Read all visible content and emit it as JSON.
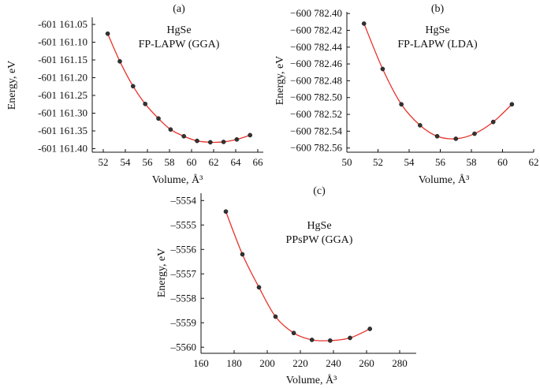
{
  "colors": {
    "curve": "#e8322a",
    "points": "#333333",
    "axis": "#111111"
  },
  "chart_data": [
    {
      "type": "line",
      "panel_label": "(a)",
      "annotation_lines": [
        "HgSe",
        "FP-LAPW (GGA)"
      ],
      "xlabel": "Volume, Å³",
      "ylabel": "Energy, eV",
      "xlim": [
        51,
        66.5
      ],
      "ylim": [
        -601161.41,
        -601161.03
      ],
      "xticks": [
        52,
        54,
        56,
        58,
        60,
        62,
        64,
        66
      ],
      "xtick_labels": [
        "52",
        "54",
        "56",
        "58",
        "60",
        "62",
        "64",
        "66"
      ],
      "yticks": [
        -601161.05,
        -601161.1,
        -601161.15,
        -601161.2,
        -601161.25,
        -601161.3,
        -601161.35,
        -601161.4
      ],
      "ytick_labels": [
        "-601 161.05",
        "-601 161.10",
        "-601 161.15",
        "-601 161.20",
        "-601 161.25",
        "-601 161.30",
        "-601 161.35",
        "-601 161.40"
      ],
      "series": [
        {
          "x": [
            52.4,
            53.5,
            54.7,
            55.8,
            57.0,
            58.1,
            59.3,
            60.5,
            61.7,
            62.9,
            64.1,
            65.3
          ],
          "values": [
            -601161.076,
            -601161.154,
            -601161.224,
            -601161.274,
            -601161.315,
            -601161.346,
            -601161.365,
            -601161.378,
            -601161.382,
            -601161.381,
            -601161.374,
            -601161.362
          ]
        }
      ]
    },
    {
      "type": "line",
      "panel_label": "(b)",
      "annotation_lines": [
        "HgSe",
        "FP-LAPW (LDA)"
      ],
      "xlabel": "Volume, Å³",
      "ylabel": "Energy, eV",
      "xlim": [
        50,
        62
      ],
      "ylim": [
        -600782.565,
        -600782.398
      ],
      "xticks": [
        50,
        52,
        54,
        56,
        58,
        60,
        62
      ],
      "xtick_labels": [
        "50",
        "52",
        "54",
        "56",
        "58",
        "60",
        "62"
      ],
      "yticks": [
        -600782.4,
        -600782.42,
        -600782.44,
        -600782.46,
        -600782.48,
        -600782.5,
        -600782.52,
        -600782.54,
        -600782.56
      ],
      "ytick_labels": [
        "−600 782.40",
        "−600 782.42",
        "−600 782.44",
        "−600 782.46",
        "−600 782.48",
        "−600 782.50",
        "−600 782.52",
        "−600 782.54",
        "−600 782.56"
      ],
      "series": [
        {
          "x": [
            51.1,
            52.3,
            53.5,
            54.7,
            55.8,
            57.0,
            58.2,
            59.4,
            60.6
          ],
          "values": [
            -600782.412,
            -600782.466,
            -600782.508,
            -600782.533,
            -600782.546,
            -600782.549,
            -600782.543,
            -600782.529,
            -600782.508
          ]
        }
      ]
    },
    {
      "type": "line",
      "panel_label": "(c)",
      "annotation_lines": [
        "HgSe",
        "PPsPW (GGA)"
      ],
      "xlabel": "Volume, Å³",
      "ylabel": "Energy, eV",
      "xlim": [
        160,
        290
      ],
      "ylim": [
        -5560.25,
        -5553.7
      ],
      "xticks": [
        160,
        180,
        200,
        220,
        240,
        260,
        280
      ],
      "xtick_labels": [
        "160",
        "180",
        "200",
        "220",
        "240",
        "260",
        "280"
      ],
      "yticks": [
        -5554,
        -5555,
        -5556,
        -5557,
        -5558,
        -5559,
        -5560
      ],
      "ytick_labels": [
        "–5554",
        "–5555",
        "–5556",
        "–5557",
        "–5558",
        "–5559",
        "–5560"
      ],
      "series": [
        {
          "x": [
            175,
            185,
            195,
            205,
            216,
            227,
            238,
            250,
            262
          ],
          "values": [
            -5554.45,
            -5556.2,
            -5557.55,
            -5558.75,
            -5559.42,
            -5559.7,
            -5559.73,
            -5559.62,
            -5559.25
          ]
        }
      ]
    }
  ]
}
